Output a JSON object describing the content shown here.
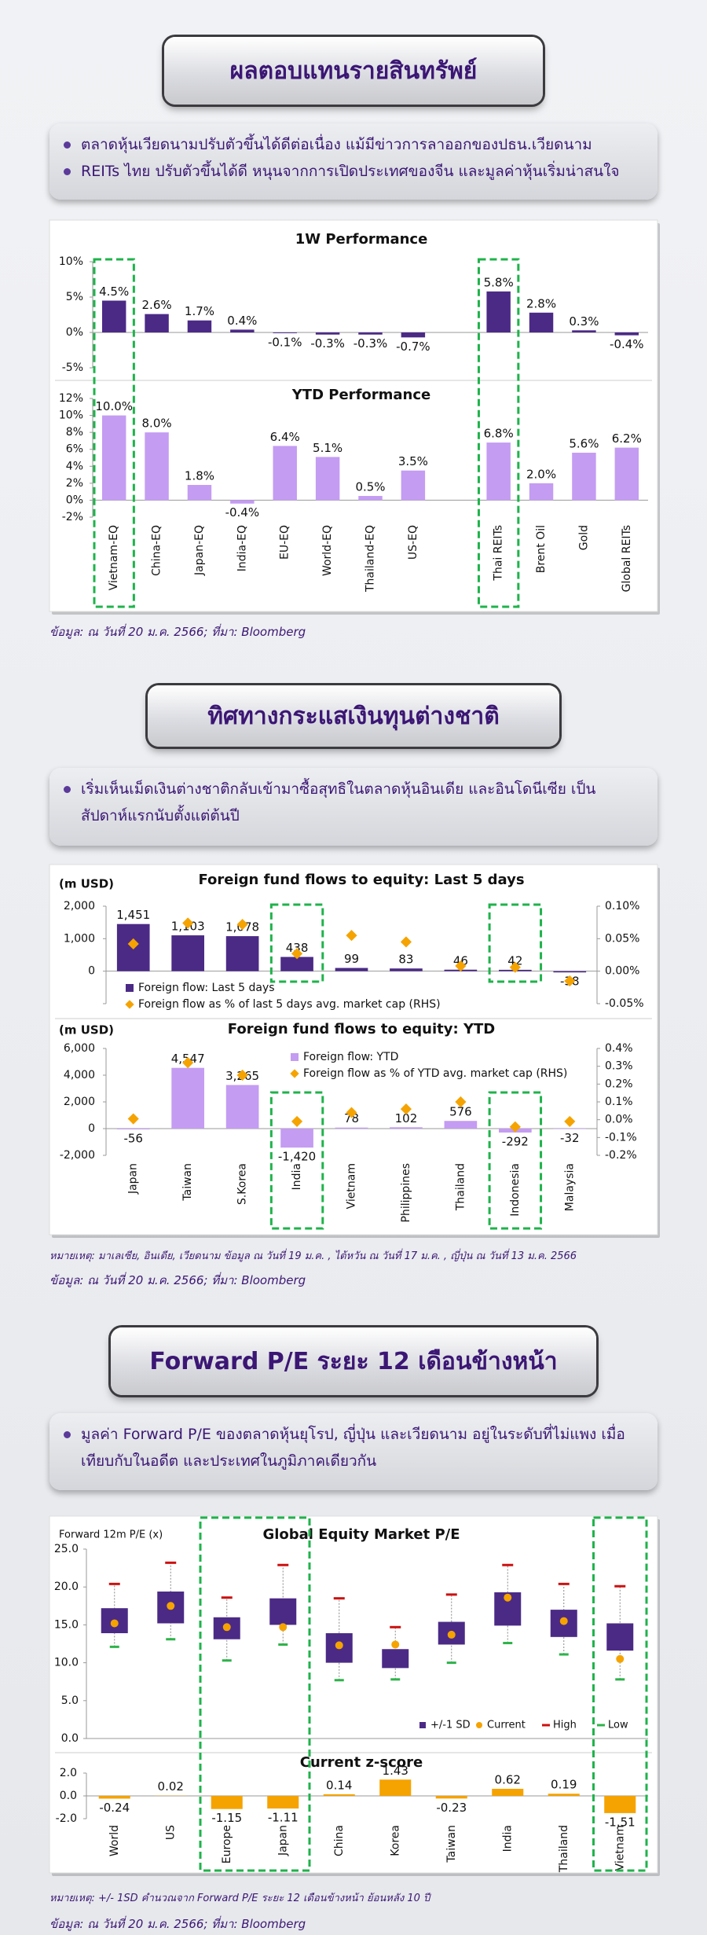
{
  "sections": [
    {
      "title": "ผลตอบแทนรายสินทรัพย์",
      "bullets": [
        "ตลาดหุ้นเวียดนามปรับตัวขึ้นได้ดีต่อเนื่อง แม้มีข่าวการลาออกของปธน.เวียดนาม",
        "REITs ไทย ปรับตัวขึ้นได้ดี หนุนจากการเปิดประเทศของจีน และมูลค่าหุ้นเริ่มน่าสนใจ"
      ],
      "source": "ข้อมูล: ณ วันที่ 20 ม.ค. 2566; ที่มา: Bloomberg"
    },
    {
      "title": "ทิศทางกระแสเงินทุนต่างชาติ",
      "bullets": [
        "เริ่มเห็นเม็ดเงินต่างชาติกลับเข้ามาซื้อสุทธิในตลาดหุ้นอินเดีย และอินโดนีเซีย เป็นสัปดาห์แรกนับตั้งแต่ต้นปี"
      ],
      "note": "หมายเหตุ: มาเลเซีย, อินเดีย, เวียดนาม ข้อมูล ณ วันที่ 19 ม.ค. , ไต้หวัน ณ วันที่ 17 ม.ค. , ญี่ปุ่น ณ วันที่ 13 ม.ค. 2566",
      "source": "ข้อมูล: ณ วันที่ 20 ม.ค. 2566; ที่มา: Bloomberg"
    },
    {
      "title": "Forward P/E ระยะ 12 เดือนข้างหน้า",
      "bullets": [
        "มูลค่า Forward P/E ของตลาดหุ้นยุโรป, ญี่ปุ่น และเวียดนาม อยู่ในระดับที่ไม่แพง เมื่อเทียบกับในอดีต และประเทศในภูมิภาคเดียวกัน"
      ],
      "note": "หมายเหตุ: +/- 1SD คำนวณจาก Forward P/E ระยะ 12 เดือนข้างหน้า ย้อนหลัง 10 ปี",
      "source": "ข้อมูล: ณ วันที่ 20 ม.ค. 2566; ที่มา: Bloomberg"
    }
  ],
  "chart_data": [
    {
      "type": "bar",
      "title": "1W Performance",
      "color": "#4b2a86",
      "values": [
        4.5,
        2.6,
        1.7,
        0.4,
        -0.1,
        -0.3,
        -0.3,
        -0.7,
        null,
        5.8,
        2.8,
        0.3,
        -0.4
      ],
      "value_labels": [
        "4.5%",
        "2.6%",
        "1.7%",
        "0.4%",
        "-0.1%",
        "-0.3%",
        "-0.3%",
        "-0.7%",
        null,
        "5.8%",
        "2.8%",
        "0.3%",
        "-0.4%"
      ],
      "ylim": [
        -5,
        10
      ],
      "yticks": [
        {
          "value": -5,
          "label": "-5%"
        },
        {
          "value": 0,
          "label": "0%"
        },
        {
          "value": 5,
          "label": "5%"
        },
        {
          "value": 10,
          "label": "10%"
        }
      ]
    },
    {
      "type": "bar",
      "title": "YTD Performance",
      "color": "#c49cf2",
      "categories": [
        "Vietnam-EQ",
        "China-EQ",
        "Japan-EQ",
        "India-EQ",
        "EU-EQ",
        "World-EQ",
        "Thailand-EQ",
        "US-EQ",
        null,
        "Thai REITs",
        "Brent Oil",
        "Gold",
        "Global REITs"
      ],
      "values": [
        10.0,
        8.0,
        1.8,
        -0.4,
        6.4,
        5.1,
        0.5,
        3.5,
        null,
        6.8,
        2.0,
        5.6,
        6.2
      ],
      "value_labels": [
        "10.0%",
        "8.0%",
        "1.8%",
        "-0.4%",
        "6.4%",
        "5.1%",
        "0.5%",
        "3.5%",
        null,
        "6.8%",
        "2.0%",
        "5.6%",
        "6.2%"
      ],
      "ylim": [
        -2,
        12
      ],
      "yticks": [
        {
          "value": -2,
          "label": "-2%"
        },
        {
          "value": 0,
          "label": "0%"
        },
        {
          "value": 2,
          "label": "2%"
        },
        {
          "value": 4,
          "label": "4%"
        },
        {
          "value": 6,
          "label": "6%"
        },
        {
          "value": 8,
          "label": "8%"
        },
        {
          "value": 10,
          "label": "10%"
        },
        {
          "value": 12,
          "label": "12%"
        }
      ]
    },
    {
      "type": "combo",
      "title": "Foreign fund flows to equity: Last 5 days",
      "ylabel": "(m USD)",
      "series": [
        {
          "name": "Foreign flow: Last 5 days",
          "type": "bar",
          "color": "#4b2a86",
          "values": [
            1451,
            1103,
            1078,
            438,
            99,
            83,
            46,
            42,
            -38
          ],
          "value_labels": [
            "1,451",
            "1,103",
            "1,078",
            "438",
            "99",
            "83",
            "46",
            "42",
            "-38"
          ]
        },
        {
          "name": "Foreign flow as % of last 5 days avg. market cap (RHS)",
          "type": "scatter",
          "axis": "y2",
          "color": "#f5a300",
          "values": [
            0.042,
            0.074,
            0.072,
            0.027,
            0.055,
            0.045,
            0.008,
            0.006,
            -0.015
          ]
        }
      ],
      "ylim": [
        -1000,
        2000
      ],
      "yticks": [
        {
          "value": -1000,
          "label": ""
        },
        {
          "value": 0,
          "label": "0"
        },
        {
          "value": 1000,
          "label": "1,000"
        },
        {
          "value": 2000,
          "label": "2,000"
        }
      ],
      "y2lim": [
        -0.05,
        0.1
      ],
      "y2ticks": [
        {
          "value": -0.05,
          "label": "-0.05%"
        },
        {
          "value": 0,
          "label": "0.00%"
        },
        {
          "value": 0.05,
          "label": "0.05%"
        },
        {
          "value": 0.1,
          "label": "0.10%"
        }
      ]
    },
    {
      "type": "combo",
      "title": "Foreign fund flows to equity: YTD",
      "ylabel": "(m USD)",
      "categories": [
        "Japan",
        "Taiwan",
        "S.Korea",
        "India",
        "Vietnam",
        "Philippines",
        "Thailand",
        "Indonesia",
        "Malaysia"
      ],
      "series": [
        {
          "name": "Foreign flow: YTD",
          "type": "bar",
          "color": "#c49cf2",
          "values": [
            -56,
            4547,
            3265,
            -1420,
            78,
            102,
            576,
            -292,
            -32
          ],
          "value_labels": [
            "-56",
            "4,547",
            "3,265",
            "-1,420",
            "78",
            "102",
            "576",
            "-292",
            "-32"
          ]
        },
        {
          "name": "Foreign flow as % of YTD avg. market cap (RHS)",
          "type": "scatter",
          "axis": "y2",
          "color": "#f5a300",
          "values": [
            0.005,
            0.32,
            0.25,
            -0.01,
            0.04,
            0.06,
            0.1,
            -0.04,
            -0.01
          ]
        }
      ],
      "ylim": [
        -2000,
        6000
      ],
      "yticks": [
        {
          "value": -2000,
          "label": "-2,000"
        },
        {
          "value": 0,
          "label": "0"
        },
        {
          "value": 2000,
          "label": "2,000"
        },
        {
          "value": 4000,
          "label": "4,000"
        },
        {
          "value": 6000,
          "label": "6,000"
        }
      ],
      "y2lim": [
        -0.2,
        0.4
      ],
      "y2ticks": [
        {
          "value": -0.2,
          "label": "-0.2%"
        },
        {
          "value": -0.1,
          "label": "-0.1%"
        },
        {
          "value": 0,
          "label": "0.0%"
        },
        {
          "value": 0.1,
          "label": "0.1%"
        },
        {
          "value": 0.2,
          "label": "0.2%"
        },
        {
          "value": 0.3,
          "label": "0.3%"
        },
        {
          "value": 0.4,
          "label": "0.4%"
        }
      ]
    },
    {
      "type": "box",
      "title": "Global Equity Market P/E",
      "ylabel": "Forward 12m P/E (x)",
      "series": [
        {
          "name": "+/-1 SD",
          "color": "#4b2a86",
          "lower": [
            13.9,
            15.2,
            13.1,
            15.0,
            10.0,
            9.3,
            12.4,
            14.9,
            13.4,
            11.6
          ],
          "upper": [
            17.2,
            19.4,
            16.0,
            18.5,
            13.9,
            11.8,
            15.4,
            19.3,
            17.0,
            15.2
          ]
        },
        {
          "name": "Current",
          "color": "#f5a300",
          "values": [
            15.2,
            17.5,
            14.7,
            14.7,
            12.3,
            12.4,
            13.7,
            18.6,
            15.5,
            10.5
          ]
        },
        {
          "name": "High",
          "color": "#cc1010",
          "values": [
            20.4,
            23.2,
            18.6,
            22.9,
            18.5,
            14.7,
            19.0,
            22.9,
            20.4,
            20.1
          ]
        },
        {
          "name": "Low",
          "color": "#2db34a",
          "values": [
            12.1,
            13.1,
            10.3,
            12.4,
            7.7,
            7.8,
            10.0,
            12.6,
            11.1,
            7.8
          ]
        }
      ],
      "ylim": [
        0,
        25
      ],
      "yticks": [
        {
          "value": 0,
          "label": "0.0"
        },
        {
          "value": 5,
          "label": "5.0"
        },
        {
          "value": 10,
          "label": "10.0"
        },
        {
          "value": 15,
          "label": "15.0"
        },
        {
          "value": 20,
          "label": "20.0"
        },
        {
          "value": 25,
          "label": "25.0"
        }
      ]
    },
    {
      "type": "bar",
      "title": "Current z-score",
      "color": "#f5a300",
      "categories": [
        "World",
        "US",
        "Europe",
        "Japan",
        "China",
        "Korea",
        "Taiwan",
        "India",
        "Thailand",
        "Vietnam"
      ],
      "values": [
        -0.24,
        0.02,
        -1.15,
        -1.11,
        0.14,
        1.43,
        -0.23,
        0.62,
        0.19,
        -1.51
      ],
      "ylim": [
        -2,
        2
      ],
      "yticks": [
        {
          "value": -2,
          "label": "-2.0"
        },
        {
          "value": 0,
          "label": "0.0"
        },
        {
          "value": 2,
          "label": "2.0"
        }
      ]
    }
  ]
}
